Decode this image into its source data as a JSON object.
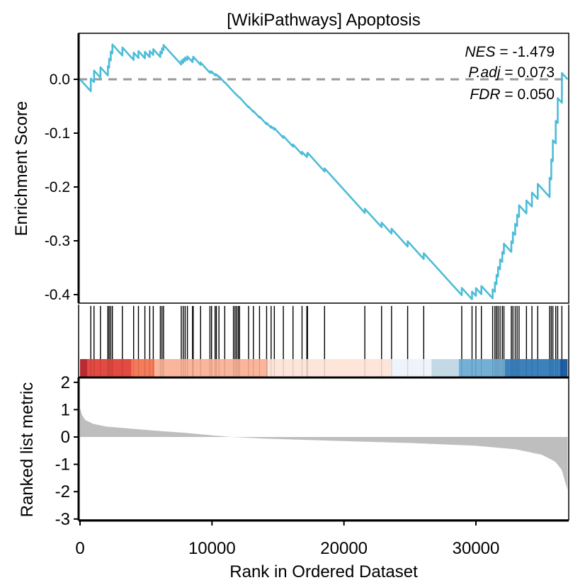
{
  "chart_data": {
    "type": "line",
    "title": "[WikiPathways] Apoptosis",
    "xlabel": "Rank in Ordered Dataset",
    "ylabel_top": "Enrichment Score",
    "ylabel_bottom": "Ranked list metric",
    "stats": {
      "nes_label": "NES",
      "nes_value": " = -1.479",
      "padj_label": "P.adj",
      "padj_value": " = 0.073",
      "fdr_label": "FDR",
      "fdr_value": " = 0.050"
    },
    "n_genes": 36944,
    "xlim": [
      0,
      36944
    ],
    "es_ylim": [
      -0.4,
      0.065
    ],
    "metric_ylim": [
      -3,
      2
    ],
    "x_ticks": [
      "0",
      "10000",
      "20000",
      "30000"
    ],
    "x_tick_values": [
      0,
      10000,
      20000,
      30000
    ],
    "es_ticks": [
      "0.0",
      "-0.1",
      "-0.2",
      "-0.3",
      "-0.4"
    ],
    "es_tick_values": [
      0,
      -0.1,
      -0.2,
      -0.3,
      -0.4
    ],
    "metric_ticks": [
      "2",
      "1",
      "0",
      "-1",
      "-2",
      "-3"
    ],
    "metric_tick_values": [
      2,
      1,
      0,
      -1,
      -2,
      -3
    ],
    "hits": [
      816,
      1060,
      1548,
      2109,
      2207,
      2329,
      2451,
      3207,
      4061,
      4427,
      4915,
      5281,
      5549,
      6086,
      6208,
      6330,
      7672,
      7819,
      7965,
      8136,
      8526,
      8575,
      9136,
      9844,
      9966,
      10234,
      10332,
      10527,
      10966,
      11625,
      11747,
      11869,
      11991,
      12089,
      12772,
      13138,
      13601,
      14138,
      14480,
      14724,
      15407,
      16139,
      16822,
      17188,
      17237,
      18530,
      21580,
      22849,
      23605,
      24825,
      26045,
      28925,
      29705,
      29998,
      30413,
      31267,
      31438,
      31560,
      31682,
      31828,
      31999,
      32121,
      32682,
      32804,
      32975,
      33121,
      33268,
      33829,
      34244,
      34683,
      35586,
      35708,
      35830,
      36049,
      36196,
      36513
    ],
    "metric_points": [
      [
        0,
        1.05
      ],
      [
        150,
        0.8
      ],
      [
        400,
        0.62
      ],
      [
        1000,
        0.48
      ],
      [
        2000,
        0.38
      ],
      [
        4000,
        0.3
      ],
      [
        6000,
        0.22
      ],
      [
        8000,
        0.15
      ],
      [
        10000,
        0.06
      ],
      [
        11500,
        0
      ],
      [
        14000,
        -0.06
      ],
      [
        20000,
        -0.15
      ],
      [
        25000,
        -0.22
      ],
      [
        30000,
        -0.32
      ],
      [
        33000,
        -0.45
      ],
      [
        35000,
        -0.65
      ],
      [
        36000,
        -0.9
      ],
      [
        36500,
        -1.2
      ],
      [
        36944,
        -1.95
      ]
    ],
    "color_segments": [
      {
        "from": 0,
        "to": 572,
        "color": "#b92b33"
      },
      {
        "from": 572,
        "to": 3890,
        "color": "#e24a42"
      },
      {
        "from": 3890,
        "to": 5647,
        "color": "#f57b5b"
      },
      {
        "from": 5647,
        "to": 14236,
        "color": "#fbb59b"
      },
      {
        "from": 14236,
        "to": 23532,
        "color": "#fde5da"
      },
      {
        "from": 23532,
        "to": 26630,
        "color": "#eef3fc"
      },
      {
        "from": 26630,
        "to": 28700,
        "color": "#c3dae6"
      },
      {
        "from": 28700,
        "to": 32200,
        "color": "#74b0d6"
      },
      {
        "from": 32200,
        "to": 36350,
        "color": "#3b82bd"
      },
      {
        "from": 36350,
        "to": 36944,
        "color": "#1f5fa2"
      }
    ],
    "colors": {
      "es_line": "#4dbcd8",
      "zero_line": "#9a9a9a",
      "metric_fill": "#bebebe",
      "hit": "#000000"
    }
  }
}
